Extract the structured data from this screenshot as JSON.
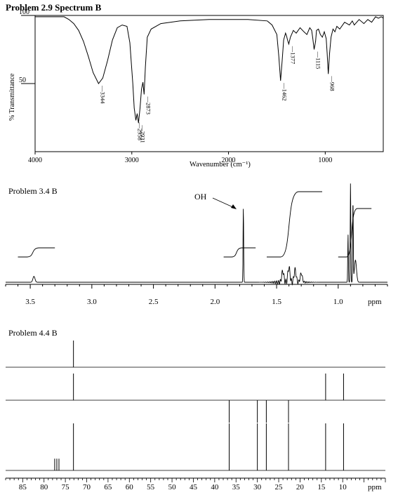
{
  "chart_data": [
    {
      "type": "line",
      "subtype": "ir-spectrum",
      "title": "Problem 2.9 Spectrum B",
      "xlabel": "Wavenumber (cm⁻¹)",
      "ylabel": "% Transmittance",
      "xlim": [
        4000,
        400
      ],
      "ylim": [
        0,
        100
      ],
      "x_ticks": [
        "4000",
        "3000",
        "2000",
        "1000"
      ],
      "y_ticks": [
        "100",
        "50"
      ],
      "peak_labels": [
        "3344",
        "2958",
        "2931",
        "2873",
        "1462",
        "1377",
        "1115",
        "968"
      ],
      "peaks": [
        {
          "x": 3344,
          "y": 50
        },
        {
          "x": 2958,
          "y": 23
        },
        {
          "x": 2931,
          "y": 21
        },
        {
          "x": 2873,
          "y": 42
        },
        {
          "x": 1462,
          "y": 52
        },
        {
          "x": 1377,
          "y": 79
        },
        {
          "x": 1115,
          "y": 75
        },
        {
          "x": 968,
          "y": 57
        }
      ],
      "series": [
        {
          "x": [
            4000,
            3800,
            3700,
            3650,
            3600,
            3550,
            3500,
            3450,
            3400,
            3344,
            3300,
            3250,
            3200,
            3150,
            3100,
            3050,
            3020,
            2990,
            2975,
            2958,
            2945,
            2931,
            2915,
            2900,
            2885,
            2873,
            2860,
            2840,
            2800,
            2700,
            2500,
            2200,
            1800,
            1600,
            1550,
            1500,
            1480,
            1462,
            1445,
            1430,
            1410,
            1400,
            1390,
            1377,
            1360,
            1330,
            1300,
            1260,
            1220,
            1190,
            1160,
            1140,
            1130,
            1115,
            1100,
            1090,
            1070,
            1050,
            1030,
            1010,
            990,
            980,
            968,
            955,
            940,
            920,
            900,
            880,
            850,
            800,
            750,
            720,
            700,
            650,
            600,
            560,
            520,
            480,
            450,
            420,
            400
          ],
          "y": [
            99,
            99,
            99,
            97,
            94,
            89,
            81,
            70,
            58,
            50,
            54,
            67,
            82,
            91,
            93,
            92,
            80,
            50,
            32,
            23,
            28,
            21,
            32,
            46,
            51,
            42,
            62,
            84,
            90,
            94,
            96,
            97,
            97,
            96,
            93,
            86,
            70,
            52,
            67,
            82,
            87,
            85,
            82,
            79,
            84,
            89,
            87,
            91,
            88,
            86,
            91,
            89,
            84,
            75,
            81,
            89,
            90,
            86,
            84,
            88,
            83,
            72,
            57,
            72,
            84,
            90,
            88,
            92,
            90,
            95,
            93,
            96,
            93,
            97,
            94,
            97,
            95,
            99,
            98,
            99,
            98
          ]
        }
      ]
    },
    {
      "type": "line",
      "subtype": "1H-NMR",
      "title": "Problem 3.4 B",
      "xlabel": "ppm",
      "xlim": [
        3.7,
        0.6
      ],
      "x_ticks": [
        "3.5",
        "3.0",
        "2.5",
        "2.0",
        "1.5",
        "1.0"
      ],
      "annotations": [
        "OH"
      ],
      "peaks": [
        {
          "ppm": 3.47,
          "height": 0.08
        },
        {
          "ppm": 1.77,
          "height": 1.0
        },
        {
          "ppm": 1.45,
          "height": 0.15
        },
        {
          "ppm": 1.4,
          "height": 0.2
        },
        {
          "ppm": 1.35,
          "height": 0.17
        },
        {
          "ppm": 1.3,
          "height": 0.12
        },
        {
          "ppm": 0.92,
          "height": 0.65
        },
        {
          "ppm": 0.9,
          "height": 1.35
        },
        {
          "ppm": 0.88,
          "height": 1.1
        },
        {
          "ppm": 0.86,
          "height": 0.3
        }
      ],
      "integrals": [
        {
          "from": 3.6,
          "to": 3.3
        },
        {
          "from": 1.93,
          "to": 1.67
        },
        {
          "from": 1.58,
          "to": 1.13
        },
        {
          "from": 1.0,
          "to": 0.73
        }
      ]
    },
    {
      "type": "line",
      "subtype": "13C-NMR",
      "title": "Problem 4.4 B",
      "xlabel": "ppm",
      "xlim": [
        89,
        0
      ],
      "x_ticks": [
        "85",
        "80",
        "75",
        "70",
        "65",
        "60",
        "55",
        "50",
        "45",
        "40",
        "35",
        "30",
        "25",
        "20",
        "15",
        "10"
      ],
      "traces": [
        {
          "peaks": [
            {
              "ppm": 73.1,
              "height": 1
            }
          ]
        },
        {
          "peaks": [
            {
              "ppm": 73.1,
              "height": 1
            },
            {
              "ppm": 14.0,
              "height": 1
            },
            {
              "ppm": 9.8,
              "height": 1
            }
          ]
        },
        {
          "peaks": [
            {
              "ppm": 36.6,
              "height": -1
            },
            {
              "ppm": 30.0,
              "height": -1
            },
            {
              "ppm": 27.9,
              "height": -1
            },
            {
              "ppm": 22.7,
              "height": -1
            }
          ]
        },
        {
          "peaks": [
            {
              "ppm": 77.5,
              "height": 0.25
            },
            {
              "ppm": 77.0,
              "height": 0.25
            },
            {
              "ppm": 76.5,
              "height": 0.25
            },
            {
              "ppm": 73.1,
              "height": 1
            },
            {
              "ppm": 36.6,
              "height": 1
            },
            {
              "ppm": 30.0,
              "height": 1
            },
            {
              "ppm": 27.9,
              "height": 1
            },
            {
              "ppm": 22.7,
              "height": 1
            },
            {
              "ppm": 14.0,
              "height": 1
            },
            {
              "ppm": 9.8,
              "height": 1
            }
          ]
        }
      ]
    }
  ]
}
